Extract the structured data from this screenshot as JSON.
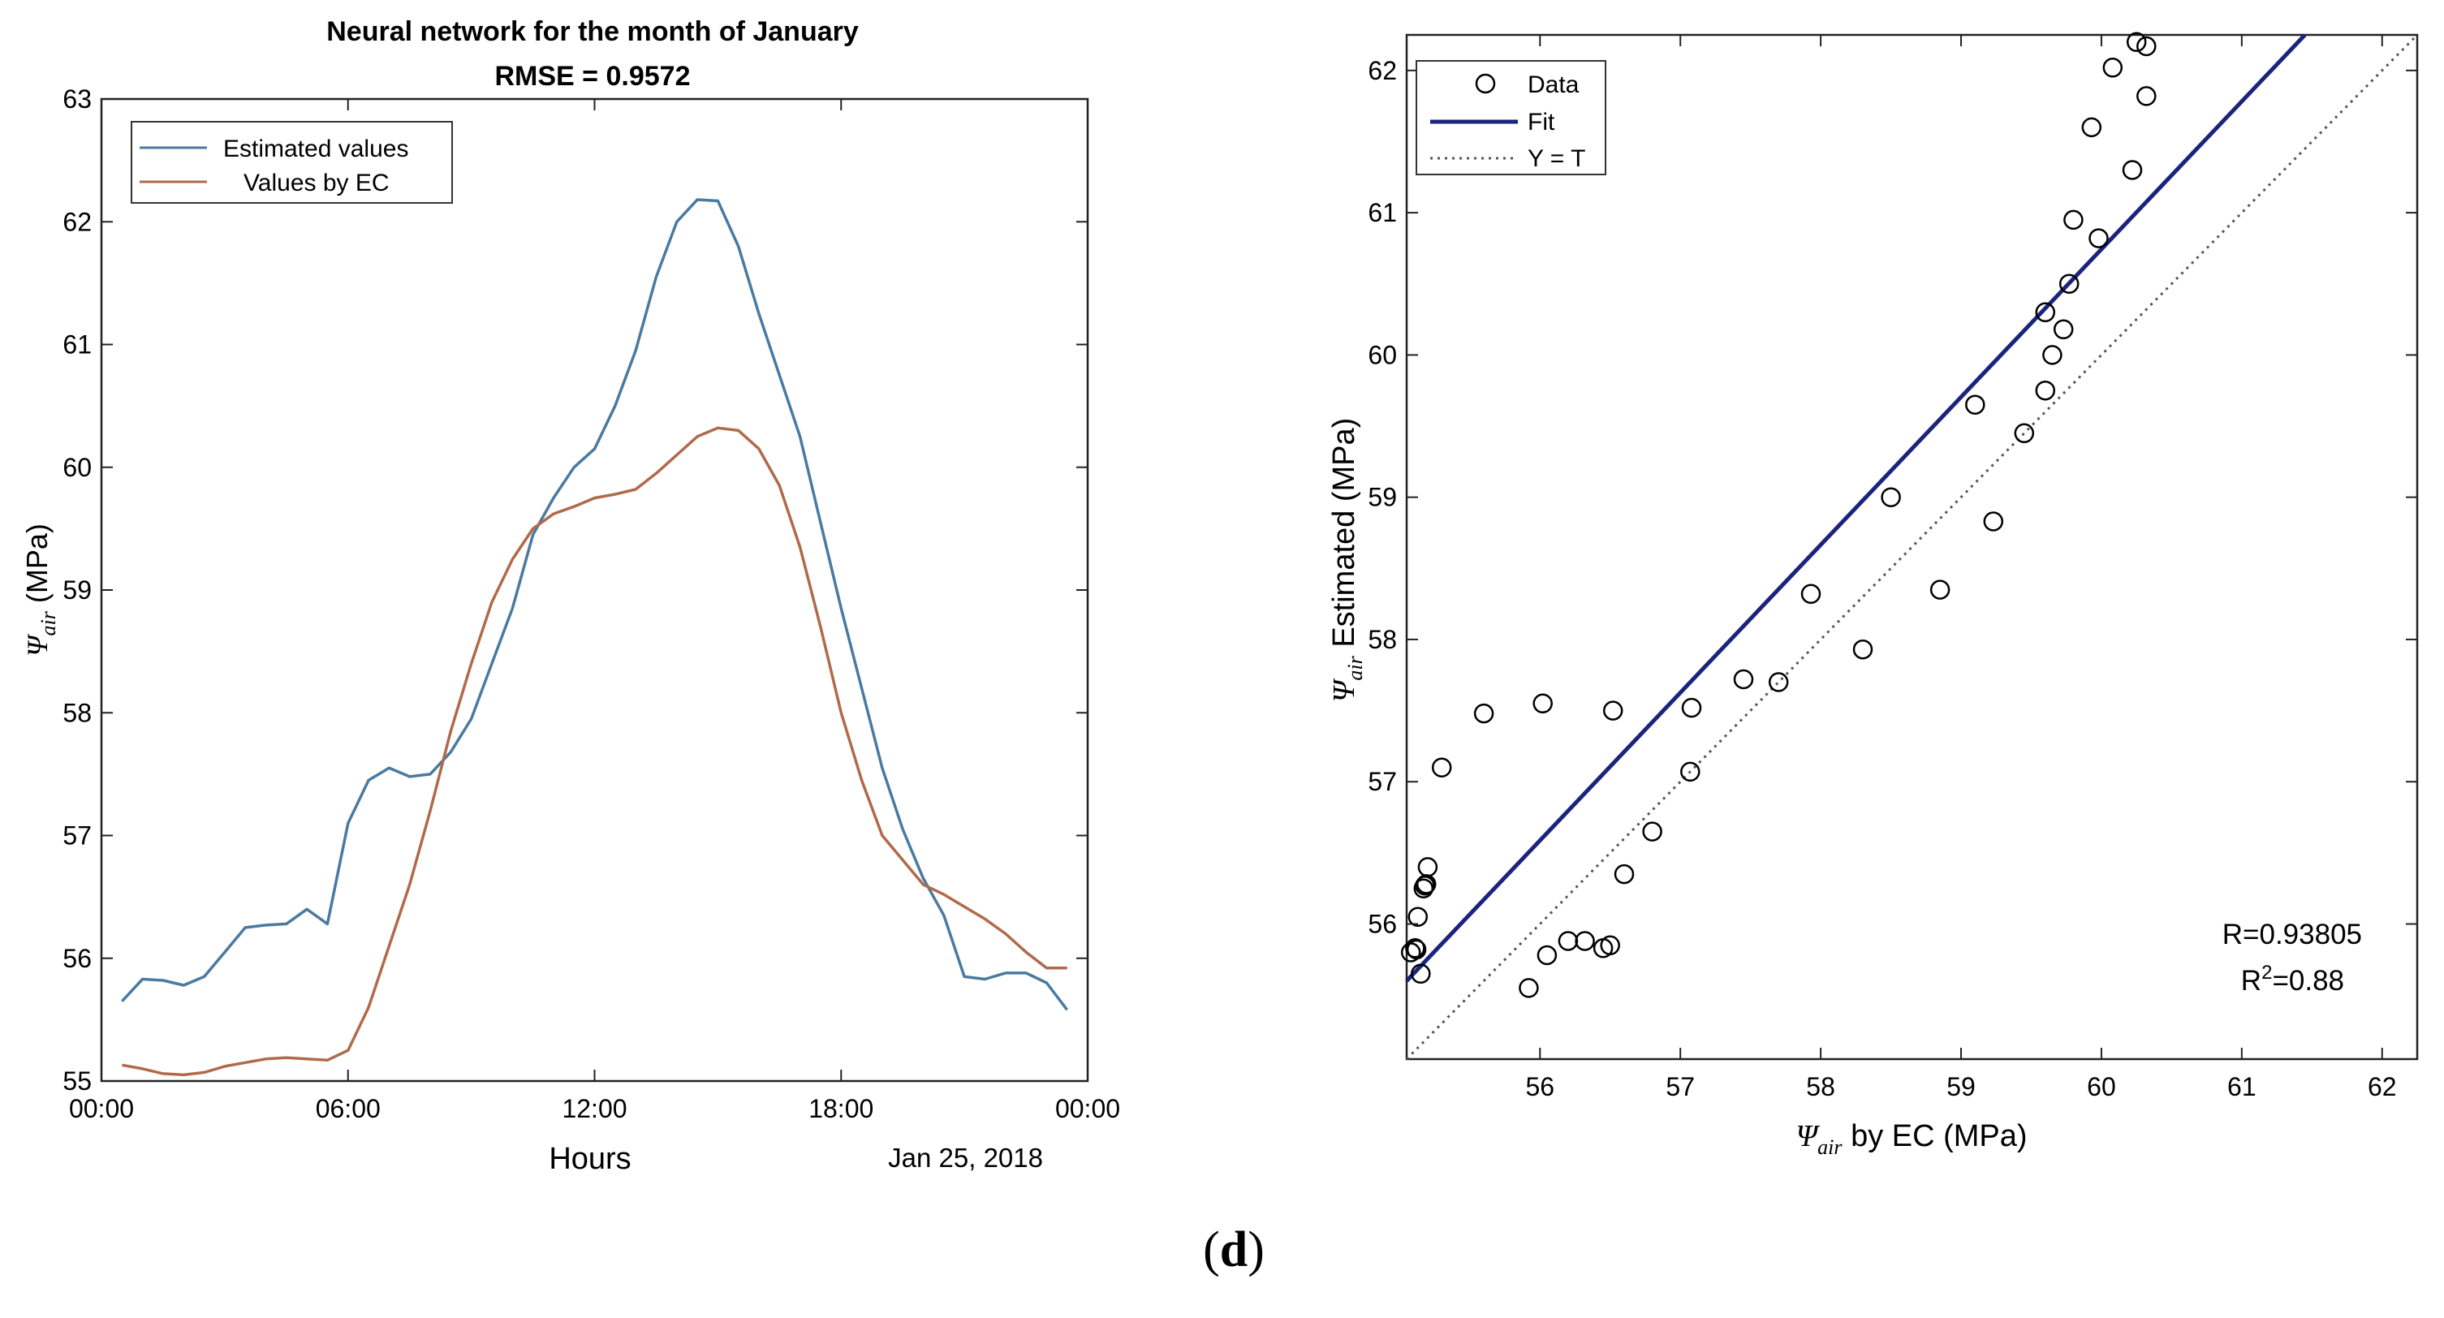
{
  "figure_label": {
    "open": "(",
    "letter": "d",
    "close": ")"
  },
  "chart_data": [
    {
      "type": "line",
      "title": "Neural network for the month of January",
      "subtitle": "RMSE = 0.9572",
      "xlabel": "Hours",
      "ylabel_symbol": "Ψ",
      "ylabel_sub": "air",
      "ylabel_unit": "(MPa)",
      "date_label": "Jan 25, 2018",
      "xlim": [
        0,
        24
      ],
      "ylim": [
        55,
        63
      ],
      "x_ticks": [
        0,
        6,
        12,
        18,
        24
      ],
      "x_tick_labels": [
        "00:00",
        "06:00",
        "12:00",
        "18:00",
        "00:00"
      ],
      "y_ticks": [
        55,
        56,
        57,
        58,
        59,
        60,
        61,
        62,
        63
      ],
      "y_tick_labels": [
        "55",
        "56",
        "57",
        "58",
        "59",
        "60",
        "61",
        "62",
        "63"
      ],
      "legend_position": "top-left",
      "x": [
        0.5,
        1,
        1.5,
        2,
        2.5,
        3,
        3.5,
        4,
        4.5,
        5,
        5.5,
        6,
        6.5,
        7,
        7.5,
        8,
        8.5,
        9,
        9.5,
        10,
        10.5,
        11,
        11.5,
        12,
        12.5,
        13,
        13.5,
        14,
        14.5,
        15,
        15.5,
        16,
        16.5,
        17,
        17.5,
        18,
        18.5,
        19,
        19.5,
        20,
        20.5,
        21,
        21.5,
        22,
        22.5,
        23,
        23.5
      ],
      "series": [
        {
          "name": "Estimated values",
          "color": "#4a7aa0",
          "values": [
            55.65,
            55.83,
            55.82,
            55.78,
            55.85,
            56.05,
            56.25,
            56.27,
            56.28,
            56.4,
            56.28,
            57.1,
            57.45,
            57.55,
            57.48,
            57.5,
            57.68,
            57.95,
            58.4,
            58.85,
            59.45,
            59.75,
            60.0,
            60.15,
            60.5,
            60.95,
            61.55,
            62.0,
            62.18,
            62.17,
            61.8,
            61.25,
            60.75,
            60.25,
            59.55,
            58.85,
            58.2,
            57.55,
            57.05,
            56.65,
            56.35,
            55.85,
            55.83,
            55.88,
            55.88,
            55.8,
            55.58
          ]
        },
        {
          "name": "Values by EC",
          "color": "#b06a4a",
          "values": [
            55.13,
            55.1,
            55.06,
            55.05,
            55.07,
            55.12,
            55.15,
            55.18,
            55.19,
            55.18,
            55.17,
            55.25,
            55.6,
            56.1,
            56.6,
            57.2,
            57.85,
            58.4,
            58.9,
            59.25,
            59.5,
            59.62,
            59.68,
            59.75,
            59.78,
            59.82,
            59.95,
            60.1,
            60.25,
            60.32,
            60.3,
            60.15,
            59.85,
            59.35,
            58.7,
            58.0,
            57.45,
            57.0,
            56.8,
            56.6,
            56.52,
            56.42,
            56.32,
            56.2,
            56.05,
            55.92,
            55.92
          ]
        }
      ]
    },
    {
      "type": "scatter",
      "xlabel_symbol": "Ψ",
      "xlabel_sub": "air",
      "xlabel_rest": "by EC  (MPa)",
      "ylabel_symbol": "Ψ",
      "ylabel_sub": "air",
      "ylabel_rest": "Estimated",
      "ylabel_unit": "(MPa)",
      "xlim": [
        55.05,
        62.25
      ],
      "ylim": [
        55.05,
        62.25
      ],
      "x_ticks": [
        56,
        57,
        58,
        59,
        60,
        61,
        62
      ],
      "x_tick_labels": [
        "56",
        "57",
        "58",
        "59",
        "60",
        "61",
        "62"
      ],
      "y_ticks": [
        56,
        57,
        58,
        59,
        60,
        61,
        62
      ],
      "y_tick_labels": [
        "56",
        "57",
        "58",
        "59",
        "60",
        "61",
        "62"
      ],
      "legend_position": "top-left",
      "legend": [
        {
          "name": "Data",
          "style": "circle",
          "color": "#000000"
        },
        {
          "name": "Fit",
          "style": "solid",
          "color": "#1a237e"
        },
        {
          "name": "Y = T",
          "style": "dotted",
          "color": "#555555"
        }
      ],
      "fit_line": {
        "x": [
          55.05,
          61.45
        ],
        "y": [
          55.6,
          62.25
        ]
      },
      "identity_line": {
        "x": [
          55.05,
          62.25
        ],
        "y": [
          55.05,
          62.25
        ]
      },
      "r_label": "R=0.93805",
      "r2_prefix": "R",
      "r2_sup": "2",
      "r2_suffix": "=0.88",
      "points": [
        {
          "x": 55.08,
          "y": 55.8
        },
        {
          "x": 55.11,
          "y": 55.83
        },
        {
          "x": 55.12,
          "y": 55.82
        },
        {
          "x": 55.13,
          "y": 56.05
        },
        {
          "x": 55.15,
          "y": 55.65
        },
        {
          "x": 55.17,
          "y": 56.25
        },
        {
          "x": 55.18,
          "y": 56.27
        },
        {
          "x": 55.19,
          "y": 56.28
        },
        {
          "x": 55.2,
          "y": 56.4
        },
        {
          "x": 55.3,
          "y": 57.1
        },
        {
          "x": 55.6,
          "y": 57.48
        },
        {
          "x": 55.92,
          "y": 55.55
        },
        {
          "x": 56.02,
          "y": 57.55
        },
        {
          "x": 56.05,
          "y": 55.78
        },
        {
          "x": 56.2,
          "y": 55.88
        },
        {
          "x": 56.32,
          "y": 55.88
        },
        {
          "x": 56.45,
          "y": 55.83
        },
        {
          "x": 56.5,
          "y": 55.85
        },
        {
          "x": 56.52,
          "y": 57.5
        },
        {
          "x": 56.6,
          "y": 56.35
        },
        {
          "x": 56.8,
          "y": 56.65
        },
        {
          "x": 57.07,
          "y": 57.07
        },
        {
          "x": 57.08,
          "y": 57.52
        },
        {
          "x": 57.45,
          "y": 57.72
        },
        {
          "x": 57.7,
          "y": 57.7
        },
        {
          "x": 57.93,
          "y": 58.32
        },
        {
          "x": 58.3,
          "y": 57.93
        },
        {
          "x": 58.5,
          "y": 59.0
        },
        {
          "x": 58.85,
          "y": 58.35
        },
        {
          "x": 59.1,
          "y": 59.65
        },
        {
          "x": 59.23,
          "y": 58.83
        },
        {
          "x": 59.45,
          "y": 59.45
        },
        {
          "x": 59.6,
          "y": 59.75
        },
        {
          "x": 59.6,
          "y": 60.3
        },
        {
          "x": 59.65,
          "y": 60.0
        },
        {
          "x": 59.73,
          "y": 60.18
        },
        {
          "x": 59.77,
          "y": 60.5
        },
        {
          "x": 59.8,
          "y": 60.95
        },
        {
          "x": 59.93,
          "y": 61.6
        },
        {
          "x": 59.98,
          "y": 60.82
        },
        {
          "x": 60.08,
          "y": 62.02
        },
        {
          "x": 60.22,
          "y": 61.3
        },
        {
          "x": 60.25,
          "y": 62.2
        },
        {
          "x": 60.32,
          "y": 62.17
        },
        {
          "x": 60.32,
          "y": 61.82
        }
      ]
    }
  ]
}
